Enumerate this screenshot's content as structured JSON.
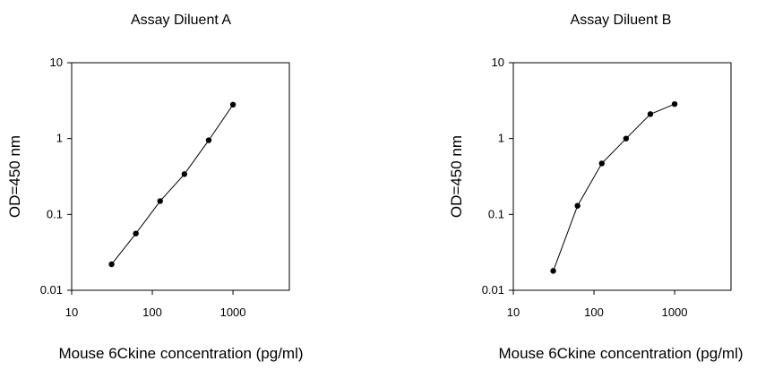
{
  "chart_data": [
    {
      "type": "scatter",
      "title": "Assay Diluent A",
      "xlabel": "Mouse 6Ckine concentration (pg/ml)",
      "ylabel": "OD=450 nm",
      "xscale": "log",
      "yscale": "log",
      "xlim": [
        10,
        5000
      ],
      "ylim": [
        0.01,
        10
      ],
      "xticks": [
        "10",
        "100",
        "1000"
      ],
      "yticks": [
        "0.01",
        "0.1",
        "1",
        "10"
      ],
      "grid": false,
      "series": [
        {
          "x": [
            31.25,
            62.5,
            125,
            250,
            500,
            1000
          ],
          "y": [
            0.022,
            0.056,
            0.15,
            0.34,
            0.95,
            2.8
          ]
        }
      ]
    },
    {
      "type": "scatter",
      "title": "Assay Diluent B",
      "xlabel": "Mouse 6Ckine concentration (pg/ml)",
      "ylabel": "OD=450 nm",
      "xscale": "log",
      "yscale": "log",
      "xlim": [
        10,
        5000
      ],
      "ylim": [
        0.01,
        10
      ],
      "xticks": [
        "10",
        "100",
        "1000"
      ],
      "yticks": [
        "0.01",
        "0.1",
        "1",
        "10"
      ],
      "grid": false,
      "series": [
        {
          "x": [
            31.25,
            62.5,
            125,
            250,
            500,
            1000
          ],
          "y": [
            0.018,
            0.13,
            0.47,
            1.0,
            2.1,
            2.85
          ]
        }
      ]
    }
  ]
}
